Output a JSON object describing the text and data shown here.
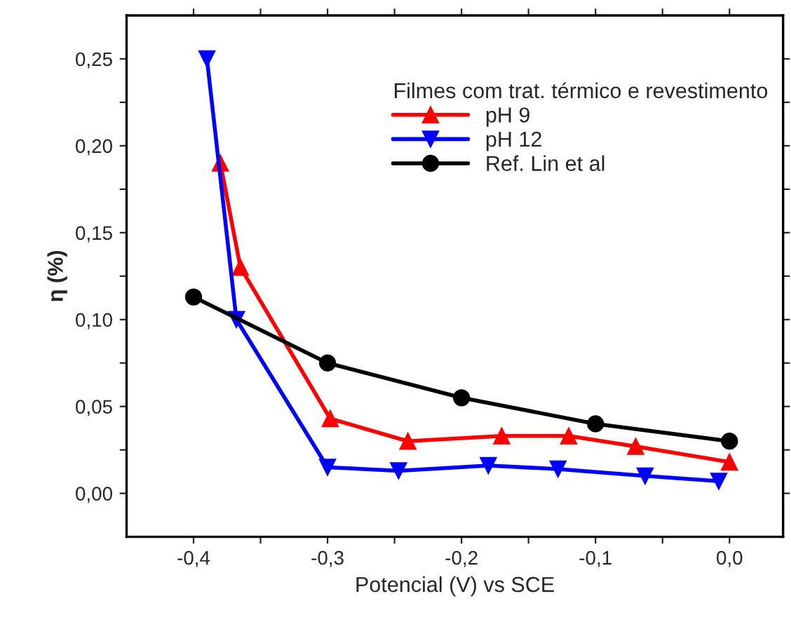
{
  "chart_data": {
    "type": "line",
    "xlabel": "Potencial (V) vs SCE",
    "ylabel": "η (%)",
    "legend_title": "Filmes com trat. térmico e revestimento",
    "legend": "top right",
    "grid": false,
    "xlim": [
      -0.45,
      0.04
    ],
    "ylim": [
      -0.025,
      0.275
    ],
    "xticks": [
      {
        "value": -0.4,
        "label": "-0,4"
      },
      {
        "value": -0.35,
        "label": null
      },
      {
        "value": -0.3,
        "label": "-0,3"
      },
      {
        "value": -0.25,
        "label": null
      },
      {
        "value": -0.2,
        "label": "-0,2"
      },
      {
        "value": -0.15,
        "label": null
      },
      {
        "value": -0.1,
        "label": "-0,1"
      },
      {
        "value": -0.05,
        "label": null
      },
      {
        "value": 0.0,
        "label": "0,0"
      }
    ],
    "yticks": [
      {
        "value": 0.0,
        "label": "0,00"
      },
      {
        "value": 0.025,
        "label": null
      },
      {
        "value": 0.05,
        "label": "0,05"
      },
      {
        "value": 0.075,
        "label": null
      },
      {
        "value": 0.1,
        "label": "0,10"
      },
      {
        "value": 0.125,
        "label": null
      },
      {
        "value": 0.15,
        "label": "0,15"
      },
      {
        "value": 0.175,
        "label": null
      },
      {
        "value": 0.2,
        "label": "0,20"
      },
      {
        "value": 0.225,
        "label": null
      },
      {
        "value": 0.25,
        "label": "0,25"
      }
    ],
    "series": [
      {
        "name": "pH 9",
        "color": "#ff0000",
        "marker": "triangle",
        "x": [
          -0.38,
          -0.365,
          -0.298,
          -0.24,
          -0.17,
          -0.12,
          -0.07,
          0.0
        ],
        "values": [
          0.19,
          0.13,
          0.043,
          0.03,
          0.033,
          0.033,
          0.027,
          0.018
        ]
      },
      {
        "name": "pH 12",
        "color": "#0000ff",
        "marker": "triangle_down",
        "x": [
          -0.39,
          -0.368,
          -0.3,
          -0.247,
          -0.18,
          -0.128,
          -0.063,
          -0.008
        ],
        "values": [
          0.25,
          0.1,
          0.015,
          0.013,
          0.016,
          0.014,
          0.01,
          0.007
        ]
      },
      {
        "name": "Ref. Lin et al",
        "color": "#000000",
        "marker": "circle",
        "x": [
          -0.4,
          -0.3,
          -0.2,
          -0.1,
          0.0
        ],
        "values": [
          0.113,
          0.075,
          0.055,
          0.04,
          0.03
        ]
      }
    ]
  }
}
